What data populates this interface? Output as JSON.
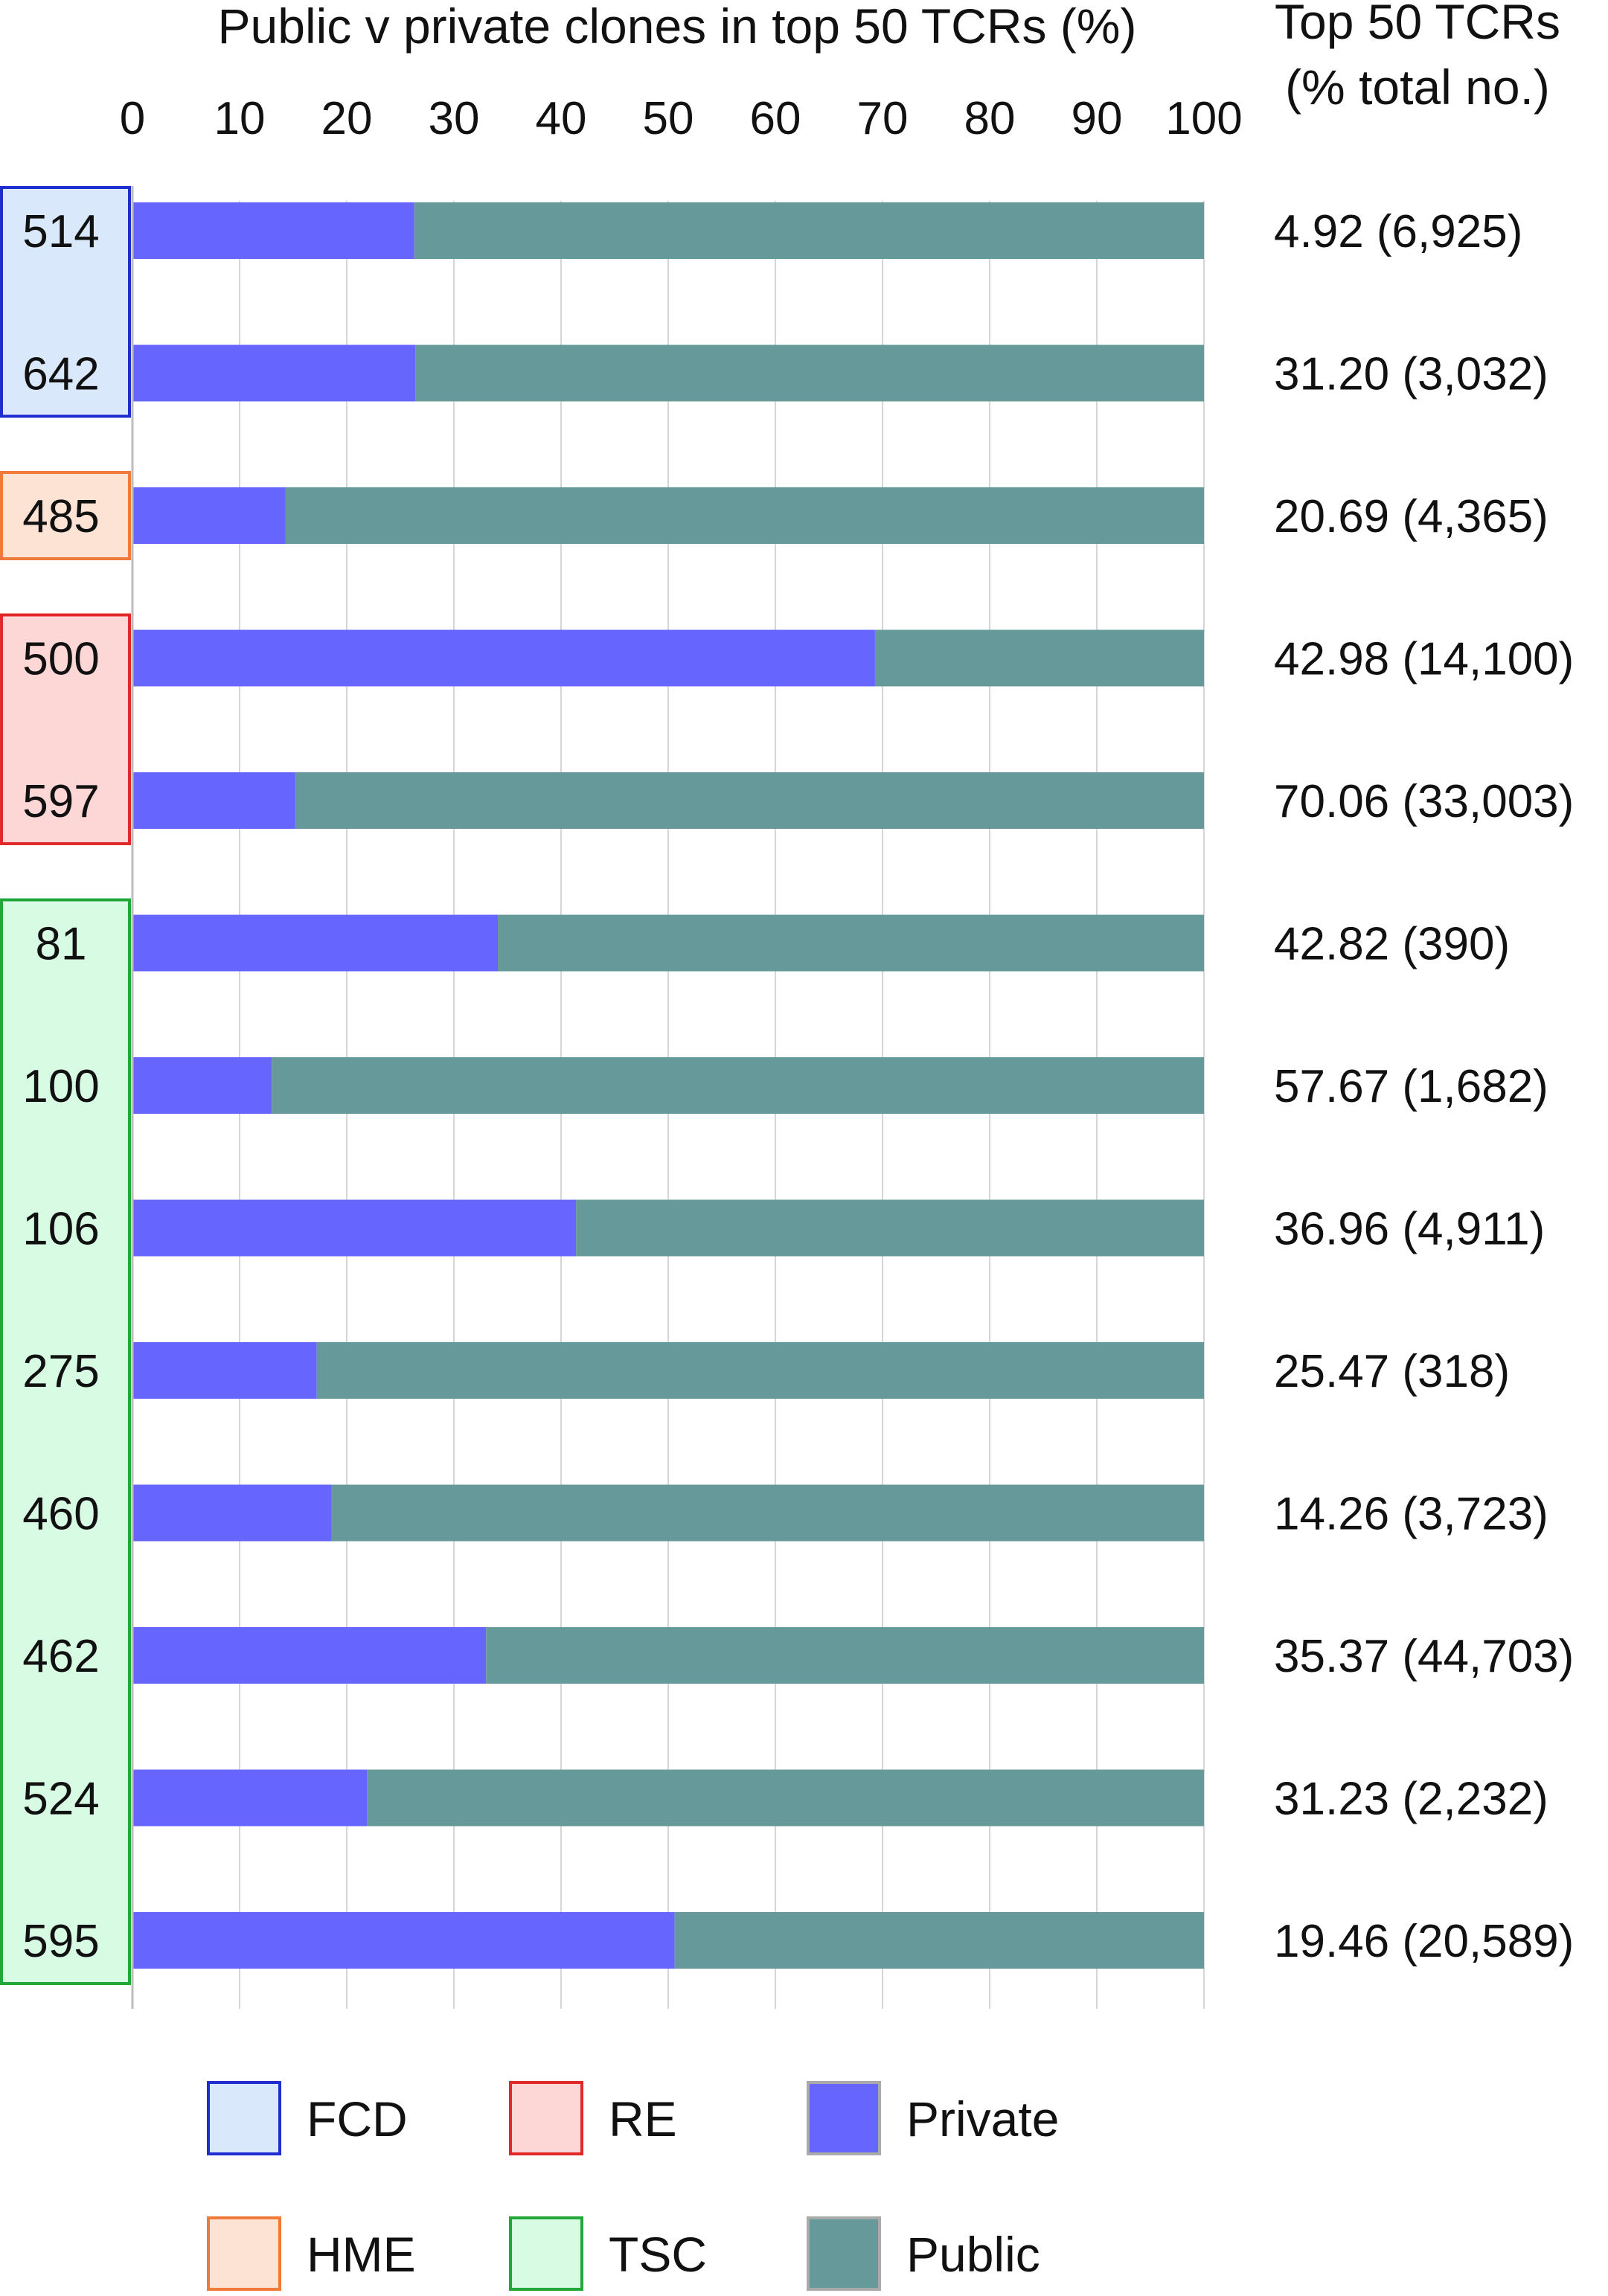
{
  "chart_data": {
    "type": "bar",
    "stacked": true,
    "orientation": "horizontal",
    "title": "Public v private clones in top 50 TCRs (%)",
    "right_header": [
      "Top 50 TCRs",
      "(% total no.)"
    ],
    "xlim": [
      0,
      100
    ],
    "xticks": [
      "0",
      "10",
      "20",
      "30",
      "40",
      "50",
      "60",
      "70",
      "80",
      "90",
      "100"
    ],
    "grid": true,
    "categories": [
      "514",
      "642",
      "485",
      "500",
      "597",
      "81",
      "100",
      "106",
      "275",
      "460",
      "462",
      "524",
      "595"
    ],
    "series": [
      {
        "name": "Private",
        "color": "#6666ff",
        "values": [
          26.3,
          26.4,
          14.3,
          69.3,
          15.2,
          34.1,
          13.0,
          41.4,
          17.2,
          18.6,
          33.0,
          21.9,
          50.6
        ]
      },
      {
        "name": "Public",
        "color": "#669999",
        "values": [
          73.7,
          73.6,
          85.7,
          30.7,
          84.8,
          65.9,
          87.0,
          58.6,
          82.8,
          81.4,
          67.0,
          78.1,
          49.4
        ]
      }
    ],
    "right_labels": [
      "4.92 (6,925)",
      "31.20 (3,032)",
      "20.69 (4,365)",
      "42.98 (14,100)",
      "70.06 (33,003)",
      "42.82 (390)",
      "57.67 (1,682)",
      "36.96 (4,911)",
      "25.47 (318)",
      "14.26 (3,723)",
      "35.37 (44,703)",
      "31.23 (2,232)",
      "19.46 (20,589)"
    ],
    "groups": [
      {
        "name": "FCD",
        "fill": "#d9e8fb",
        "stroke": "#1f2fcf",
        "rows": [
          0,
          1
        ]
      },
      {
        "name": "HME",
        "fill": "#fde3d4",
        "stroke": "#f07a3a",
        "rows": [
          2
        ]
      },
      {
        "name": "RE",
        "fill": "#fdd6d6",
        "stroke": "#e02a2a",
        "rows": [
          3,
          4
        ]
      },
      {
        "name": "TSC",
        "fill": "#d8fbe4",
        "stroke": "#21a838",
        "rows": [
          5,
          6,
          7,
          8,
          9,
          10,
          11,
          12
        ]
      }
    ],
    "legend": {
      "placement": "bottom",
      "items": [
        {
          "label": "FCD",
          "fill": "#d9e8fb",
          "stroke": "#1f2fcf"
        },
        {
          "label": "RE",
          "fill": "#fdd6d6",
          "stroke": "#e02a2a"
        },
        {
          "label": "Private",
          "fill": "#6666ff",
          "stroke": "#aaaaaa"
        },
        {
          "label": "HME",
          "fill": "#fde3d4",
          "stroke": "#f07a3a"
        },
        {
          "label": "TSC",
          "fill": "#d8fbe4",
          "stroke": "#21a838"
        },
        {
          "label": "Public",
          "fill": "#669999",
          "stroke": "#aaaaaa"
        }
      ]
    }
  }
}
